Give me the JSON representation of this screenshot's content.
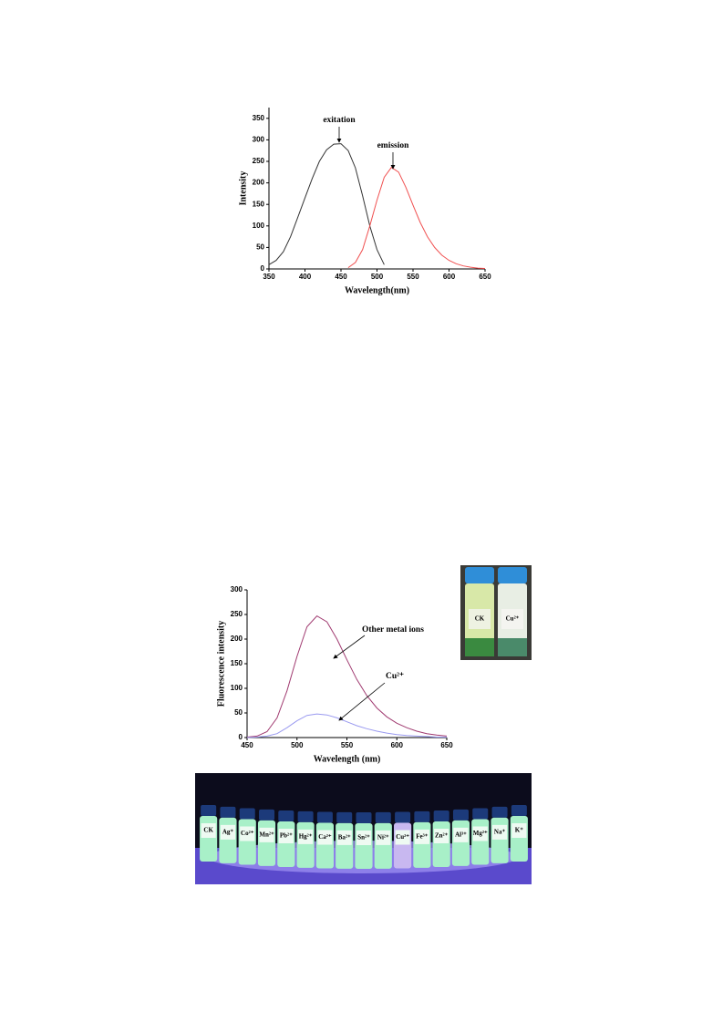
{
  "chart_data": [
    {
      "type": "line",
      "x_label": "Wavelength(nm)",
      "y_label": "Intensity",
      "xlim": [
        350,
        650
      ],
      "xticks": [
        350,
        400,
        450,
        500,
        550,
        600,
        650
      ],
      "ylim": [
        0,
        375
      ],
      "yticks": [
        0,
        50,
        100,
        150,
        200,
        250,
        300,
        350
      ],
      "series": [
        {
          "name": "exitation",
          "color": "#333333",
          "x": [
            350,
            360,
            370,
            380,
            390,
            400,
            410,
            420,
            430,
            440,
            450,
            460,
            470,
            480,
            490,
            500,
            510
          ],
          "values": [
            10,
            20,
            40,
            75,
            120,
            165,
            210,
            250,
            277,
            290,
            291,
            275,
            235,
            170,
            100,
            45,
            10
          ]
        },
        {
          "name": "emission",
          "color": "#f05050",
          "x": [
            460,
            470,
            480,
            490,
            500,
            510,
            520,
            530,
            540,
            550,
            560,
            570,
            580,
            590,
            600,
            610,
            620,
            630,
            640,
            650
          ],
          "values": [
            3,
            15,
            45,
            100,
            160,
            213,
            236,
            225,
            190,
            148,
            108,
            75,
            50,
            32,
            20,
            12,
            7,
            4,
            2,
            1
          ]
        }
      ]
    },
    {
      "type": "line",
      "x_label": "Wavelength (nm)",
      "y_label": "Fluorescence intensity",
      "xlim": [
        450,
        650
      ],
      "xticks": [
        450,
        500,
        550,
        600,
        650
      ],
      "ylim": [
        0,
        300
      ],
      "yticks": [
        0,
        50,
        100,
        150,
        200,
        250,
        300
      ],
      "series": [
        {
          "name": "Other metal ions",
          "color": "#a03a70",
          "x": [
            450,
            460,
            470,
            480,
            490,
            500,
            510,
            520,
            530,
            540,
            550,
            560,
            570,
            580,
            590,
            600,
            610,
            620,
            630,
            640,
            650
          ],
          "values": [
            1,
            3,
            12,
            40,
            95,
            165,
            225,
            247,
            235,
            200,
            158,
            118,
            85,
            60,
            42,
            29,
            20,
            13,
            8,
            5,
            3
          ]
        },
        {
          "name": "Cu²⁺",
          "color": "#9a9af0",
          "x": [
            450,
            460,
            470,
            480,
            490,
            500,
            510,
            520,
            530,
            540,
            550,
            560,
            570,
            580,
            590,
            600,
            610,
            620,
            630,
            640,
            650
          ],
          "values": [
            0,
            1,
            3,
            8,
            20,
            34,
            45,
            48,
            46,
            40,
            32,
            24,
            18,
            13,
            9,
            6,
            4,
            3,
            2,
            1,
            1
          ]
        }
      ]
    }
  ],
  "photo_vials_pair": {
    "labels": [
      "CK",
      "Cu²⁺"
    ]
  },
  "photo_vials_row": {
    "labels": [
      "CK",
      "Ag⁺",
      "Co²⁺",
      "Mn²⁺",
      "Pb²⁺",
      "Hg²⁺",
      "Ca²⁺",
      "Ba²⁺",
      "Sn²⁺",
      "Ni²⁺",
      "Cu²⁺",
      "Fe³⁺",
      "Zn²⁺",
      "Al³⁺",
      "Mg²⁺",
      "Na⁺",
      "K⁺"
    ]
  }
}
